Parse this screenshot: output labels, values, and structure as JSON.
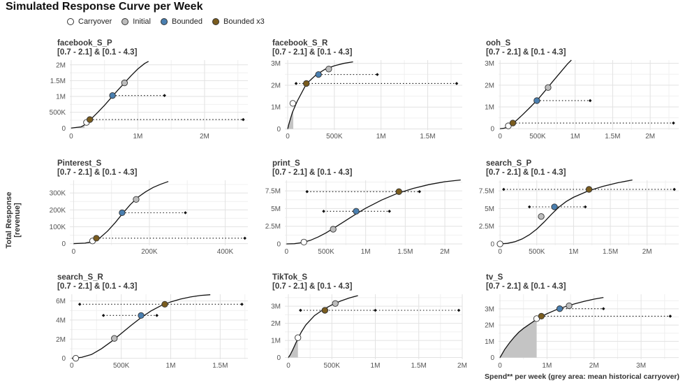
{
  "title": "Simulated Response Curve per Week",
  "legend": [
    {
      "label": "Carryover",
      "color": "#ffffff"
    },
    {
      "label": "Initial",
      "color": "#bdbdbd"
    },
    {
      "label": "Bounded",
      "color": "#4a7fb0"
    },
    {
      "label": "Bounded x3",
      "color": "#7a5c1e"
    }
  ],
  "ylabel": "Total Response [revenue]",
  "xlabel": "Spend** per week (grey area: mean historical carryover)",
  "chart_data": [
    {
      "type": "line",
      "name": "facebook_S_P",
      "subtitle": "[0.7 - 2.1] & [0.1 - 4.3]",
      "xlim": [
        -20000,
        2650000
      ],
      "ylim": [
        -60000,
        2150000
      ],
      "xticks": [
        {
          "v": 0,
          "l": "0"
        },
        {
          "v": 1000000,
          "l": "1M"
        },
        {
          "v": 2000000,
          "l": "2M"
        }
      ],
      "yticks": [
        {
          "v": 0,
          "l": "0"
        },
        {
          "v": 500000,
          "l": "500K"
        },
        {
          "v": 1000000,
          "l": "1M"
        },
        {
          "v": 1500000,
          "l": "1.5M"
        },
        {
          "v": 2000000,
          "l": "2M"
        }
      ],
      "curve": {
        "x": [
          0,
          150000,
          200000,
          250000,
          300000,
          400000,
          500000,
          600000,
          700000,
          800000,
          900000,
          1000000,
          1100000,
          1160000
        ],
        "y": [
          0,
          40000,
          100000,
          190000,
          290000,
          500000,
          720000,
          960000,
          1200000,
          1430000,
          1660000,
          1870000,
          2040000,
          2110000
        ]
      },
      "carryover_to": 200000,
      "points": {
        "carryover": [
          230000,
          180000
        ],
        "initial": [
          800000,
          1430000
        ],
        "bounded": [
          620000,
          1030000
        ],
        "bounded_x3": [
          280000,
          270000
        ]
      },
      "ranges": [
        {
          "y": 1030000,
          "x0": 620000,
          "x1": 1400000
        },
        {
          "y": 270000,
          "x0": 280000,
          "x1": 2580000
        }
      ]
    },
    {
      "type": "line",
      "name": "facebook_S_R",
      "subtitle": "[0.7 - 2.1] & [0.1 - 4.3]",
      "xlim": [
        -30000,
        1870000
      ],
      "ylim": [
        -50000,
        3150000
      ],
      "xticks": [
        {
          "v": 0,
          "l": "0"
        },
        {
          "v": 500000,
          "l": "500K"
        },
        {
          "v": 1000000,
          "l": "1M"
        },
        {
          "v": 1500000,
          "l": "1.5M"
        }
      ],
      "yticks": [
        {
          "v": 0,
          "l": "0"
        },
        {
          "v": 1000000,
          "l": "1M"
        },
        {
          "v": 2000000,
          "l": "2M"
        },
        {
          "v": 3000000,
          "l": "3M"
        }
      ],
      "curve": {
        "x": [
          0,
          10000,
          25000,
          50000,
          100000,
          200000,
          300000,
          400000,
          500000,
          600000,
          700000
        ],
        "y": [
          0,
          180000,
          400000,
          750000,
          1250000,
          2060000,
          2460000,
          2730000,
          2890000,
          3000000,
          3070000
        ]
      },
      "carryover_to": 60000,
      "points": {
        "carryover": [
          55000,
          1170000
        ],
        "initial": [
          440000,
          2740000
        ],
        "bounded": [
          330000,
          2490000
        ],
        "bounded_x3": [
          200000,
          2080000
        ]
      },
      "ranges": [
        {
          "y": 2490000,
          "x0": 330000,
          "x1": 960000
        },
        {
          "y": 2080000,
          "x0": 90000,
          "x1": 1810000
        }
      ]
    },
    {
      "type": "line",
      "name": "ooh_S",
      "subtitle": "[0.7 - 2.1] & [0.1 - 4.3]",
      "xlim": [
        -20000,
        2380000
      ],
      "ylim": [
        -60000,
        3150000
      ],
      "xticks": [
        {
          "v": 0,
          "l": "0"
        },
        {
          "v": 500000,
          "l": "500K"
        },
        {
          "v": 1000000,
          "l": "1M"
        },
        {
          "v": 1500000,
          "l": "1.5M"
        },
        {
          "v": 2000000,
          "l": "2M"
        }
      ],
      "yticks": [
        {
          "v": 0,
          "l": "0"
        },
        {
          "v": 1000000,
          "l": "1M"
        },
        {
          "v": 2000000,
          "l": "2M"
        },
        {
          "v": 3000000,
          "l": "3M"
        }
      ],
      "curve": {
        "x": [
          0,
          50000,
          100000,
          150000,
          200000,
          300000,
          400000,
          500000,
          600000,
          700000,
          800000,
          900000,
          950000
        ],
        "y": [
          0,
          20000,
          70000,
          180000,
          320000,
          640000,
          980000,
          1330000,
          1740000,
          2160000,
          2570000,
          2980000,
          3150000
        ]
      },
      "carryover_to": 100000,
      "points": {
        "carryover": [
          110000,
          130000
        ],
        "initial": [
          640000,
          1890000
        ],
        "bounded": [
          490000,
          1290000
        ],
        "bounded_x3": [
          170000,
          260000
        ]
      },
      "ranges": [
        {
          "y": 1290000,
          "x0": 490000,
          "x1": 1200000
        },
        {
          "y": 260000,
          "x0": 170000,
          "x1": 2310000
        }
      ]
    },
    {
      "type": "line",
      "name": "Pinterest_S",
      "subtitle": "[0.7 - 2.1] & [0.1 - 4.3]",
      "xlim": [
        -10000,
        460000
      ],
      "ylim": [
        -10000,
        375000
      ],
      "xticks": [
        {
          "v": 0,
          "l": "0"
        },
        {
          "v": 200000,
          "l": "200K"
        },
        {
          "v": 400000,
          "l": "400K"
        }
      ],
      "yticks": [
        {
          "v": 0,
          "l": "0"
        },
        {
          "v": 100000,
          "l": "100K"
        },
        {
          "v": 200000,
          "l": "200K"
        },
        {
          "v": 300000,
          "l": "300K"
        }
      ],
      "curve": {
        "x": [
          0,
          30000,
          50000,
          70000,
          90000,
          110000,
          130000,
          150000,
          170000,
          190000,
          210000,
          230000,
          250000
        ],
        "y": [
          0,
          3000,
          12000,
          35000,
          75000,
          125000,
          180000,
          232000,
          275000,
          307000,
          333000,
          352000,
          368000
        ]
      },
      "carryover_to": 50000,
      "points": {
        "carryover": [
          50000,
          16000
        ],
        "initial": [
          165000,
          262000
        ],
        "bounded": [
          128000,
          183000
        ],
        "bounded_x3": [
          60000,
          32000
        ]
      },
      "ranges": [
        {
          "y": 183000,
          "x0": 128000,
          "x1": 295000
        },
        {
          "y": 32000,
          "x0": 60000,
          "x1": 452000
        }
      ]
    },
    {
      "type": "line",
      "name": "print_S",
      "subtitle": "[0.7 - 2.1] & [0.1 - 4.3]",
      "xlim": [
        -20000,
        2220000
      ],
      "ylim": [
        -200000,
        9000000
      ],
      "xticks": [
        {
          "v": 0,
          "l": "0"
        },
        {
          "v": 500000,
          "l": "500K"
        },
        {
          "v": 1000000,
          "l": "1M"
        },
        {
          "v": 1500000,
          "l": "1.5M"
        },
        {
          "v": 2000000,
          "l": "2M"
        }
      ],
      "yticks": [
        {
          "v": 0,
          "l": "0"
        },
        {
          "v": 2500000,
          "l": "2.5M"
        },
        {
          "v": 5000000,
          "l": "5M"
        },
        {
          "v": 7500000,
          "l": "7.5M"
        }
      ],
      "curve": {
        "x": [
          0,
          100000,
          200000,
          300000,
          400000,
          500000,
          600000,
          700000,
          800000,
          900000,
          1000000,
          1200000,
          1400000,
          1600000,
          1800000,
          2000000,
          2200000
        ],
        "y": [
          0,
          30000,
          180000,
          500000,
          980000,
          1560000,
          2250000,
          2960000,
          3680000,
          4380000,
          5050000,
          6200000,
          7150000,
          7850000,
          8400000,
          8800000,
          9050000
        ]
      },
      "carryover_to": 0,
      "points": {
        "carryover": [
          220000,
          260000
        ],
        "initial": [
          590000,
          2080000
        ],
        "bounded": [
          880000,
          4620000
        ],
        "bounded_x3": [
          1420000,
          7400000
        ]
      },
      "ranges": [
        {
          "y": 7400000,
          "x0": 260000,
          "x1": 1680000
        },
        {
          "y": 4620000,
          "x0": 470000,
          "x1": 1300000
        }
      ]
    },
    {
      "type": "line",
      "name": "search_S_P",
      "subtitle": "[0.7 - 2.1] & [0.1 - 4.3]",
      "xlim": [
        -20000,
        2430000
      ],
      "ylim": [
        -200000,
        9000000
      ],
      "xticks": [
        {
          "v": 0,
          "l": "0"
        },
        {
          "v": 500000,
          "l": "500K"
        },
        {
          "v": 1000000,
          "l": "1M"
        },
        {
          "v": 1500000,
          "l": "1.5M"
        },
        {
          "v": 2000000,
          "l": "2M"
        }
      ],
      "yticks": [
        {
          "v": 0,
          "l": "0"
        },
        {
          "v": 2500000,
          "l": "2.5M"
        },
        {
          "v": 5000000,
          "l": "5M"
        },
        {
          "v": 7500000,
          "l": "7.5M"
        }
      ],
      "curve": {
        "x": [
          0,
          100000,
          200000,
          300000,
          400000,
          500000,
          600000,
          700000,
          800000,
          900000,
          1000000,
          1200000,
          1400000,
          1600000,
          1800000
        ],
        "y": [
          0,
          80000,
          300000,
          700000,
          1300000,
          2100000,
          3100000,
          4200000,
          5200000,
          6000000,
          6600000,
          7500000,
          8150000,
          8650000,
          9050000
        ]
      },
      "carryover_to": 0,
      "points": {
        "carryover": [
          0,
          0
        ],
        "initial": [
          560000,
          3880000
        ],
        "bounded": [
          740000,
          5240000
        ],
        "bounded_x3": [
          1210000,
          7720000
        ]
      },
      "ranges": [
        {
          "y": 7720000,
          "x0": 50000,
          "x1": 2370000
        },
        {
          "y": 5240000,
          "x0": 400000,
          "x1": 1160000
        }
      ]
    },
    {
      "type": "line",
      "name": "search_S_R",
      "subtitle": "[0.7 - 2.1] & [0.1 - 4.3]",
      "xlim": [
        -20000,
        1780000
      ],
      "ylim": [
        -100000,
        6700000
      ],
      "xticks": [
        {
          "v": 0,
          "l": "0"
        },
        {
          "v": 500000,
          "l": "500K"
        },
        {
          "v": 1000000,
          "l": "1M"
        },
        {
          "v": 1500000,
          "l": "1.5M"
        }
      ],
      "yticks": [
        {
          "v": 0,
          "l": "0"
        },
        {
          "v": 2000000,
          "l": "2M"
        },
        {
          "v": 4000000,
          "l": "4M"
        },
        {
          "v": 6000000,
          "l": "6M"
        }
      ],
      "curve": {
        "x": [
          0,
          100000,
          200000,
          300000,
          400000,
          500000,
          600000,
          700000,
          800000,
          900000,
          1000000,
          1100000,
          1200000,
          1300000,
          1400000
        ],
        "y": [
          0,
          100000,
          400000,
          1000000,
          1750000,
          2600000,
          3450000,
          4250000,
          4950000,
          5500000,
          5900000,
          6200000,
          6420000,
          6570000,
          6650000
        ]
      },
      "carryover_to": 0,
      "points": {
        "carryover": [
          40000,
          0
        ],
        "initial": [
          430000,
          2080000
        ],
        "bounded": [
          700000,
          4480000
        ],
        "bounded_x3": [
          940000,
          5650000
        ]
      },
      "ranges": [
        {
          "y": 5650000,
          "x0": 80000,
          "x1": 1720000
        },
        {
          "y": 4480000,
          "x0": 320000,
          "x1": 860000
        }
      ]
    },
    {
      "type": "line",
      "name": "TikTok_S",
      "subtitle": "[0.7 - 2.1] & [0.1 - 4.3]",
      "xlim": [
        -40000,
        2000000
      ],
      "ylim": [
        -100000,
        3700000
      ],
      "xticks": [
        {
          "v": 0,
          "l": "0"
        },
        {
          "v": 500000,
          "l": "500K"
        },
        {
          "v": 1000000,
          "l": "1M"
        },
        {
          "v": 1500000,
          "l": "1.5M"
        },
        {
          "v": 2000000,
          "l": "2M"
        }
      ],
      "yticks": [
        {
          "v": 0,
          "l": "0"
        },
        {
          "v": 1000000,
          "l": "1M"
        },
        {
          "v": 2000000,
          "l": "2M"
        },
        {
          "v": 3000000,
          "l": "3M"
        }
      ],
      "curve": {
        "x": [
          0,
          20000,
          50000,
          100000,
          150000,
          200000,
          300000,
          400000,
          500000,
          600000,
          700000,
          800000
        ],
        "y": [
          0,
          150000,
          450000,
          1000000,
          1500000,
          1900000,
          2450000,
          2800000,
          3080000,
          3300000,
          3480000,
          3620000
        ]
      },
      "carryover_to": 110000,
      "points": {
        "carryover": [
          110000,
          1160000
        ],
        "initial": [
          540000,
          3160000
        ],
        "bounded": [
          420000,
          2760000
        ],
        "bounded_x3": [
          420000,
          2760000
        ]
      },
      "ranges": [
        {
          "y": 2760000,
          "x0": 140000,
          "x1": 1000000
        },
        {
          "y": 2760000,
          "x0": 140000,
          "x1": 1960000
        }
      ]
    },
    {
      "type": "line",
      "name": "tv_S",
      "subtitle": "[0.7 - 2.1] & [0.1 - 4.3]",
      "xlim": [
        -30000,
        3800000
      ],
      "ylim": [
        -100000,
        3900000
      ],
      "xticks": [
        {
          "v": 0,
          "l": "0"
        },
        {
          "v": 1000000,
          "l": "1M"
        },
        {
          "v": 2000000,
          "l": "2M"
        },
        {
          "v": 3000000,
          "l": "3M"
        }
      ],
      "yticks": [
        {
          "v": 0,
          "l": "0"
        },
        {
          "v": 1000000,
          "l": "1M"
        },
        {
          "v": 2000000,
          "l": "2M"
        },
        {
          "v": 3000000,
          "l": "3M"
        }
      ],
      "curve": {
        "x": [
          0,
          100000,
          200000,
          300000,
          400000,
          500000,
          600000,
          800000,
          1000000,
          1200000,
          1400000,
          1600000,
          1800000,
          2000000,
          2200000
        ],
        "y": [
          0,
          500000,
          900000,
          1250000,
          1560000,
          1800000,
          2000000,
          2400000,
          2700000,
          2950000,
          3150000,
          3320000,
          3470000,
          3600000,
          3700000
        ]
      },
      "carryover_to": 780000,
      "points": {
        "carryover": [
          780000,
          2400000
        ],
        "initial": [
          1470000,
          3190000
        ],
        "bounded": [
          1270000,
          3010000
        ],
        "bounded_x3": [
          880000,
          2550000
        ]
      },
      "ranges": [
        {
          "y": 3010000,
          "x0": 1270000,
          "x1": 2200000
        },
        {
          "y": 2550000,
          "x0": 880000,
          "x1": 3620000
        }
      ]
    }
  ]
}
